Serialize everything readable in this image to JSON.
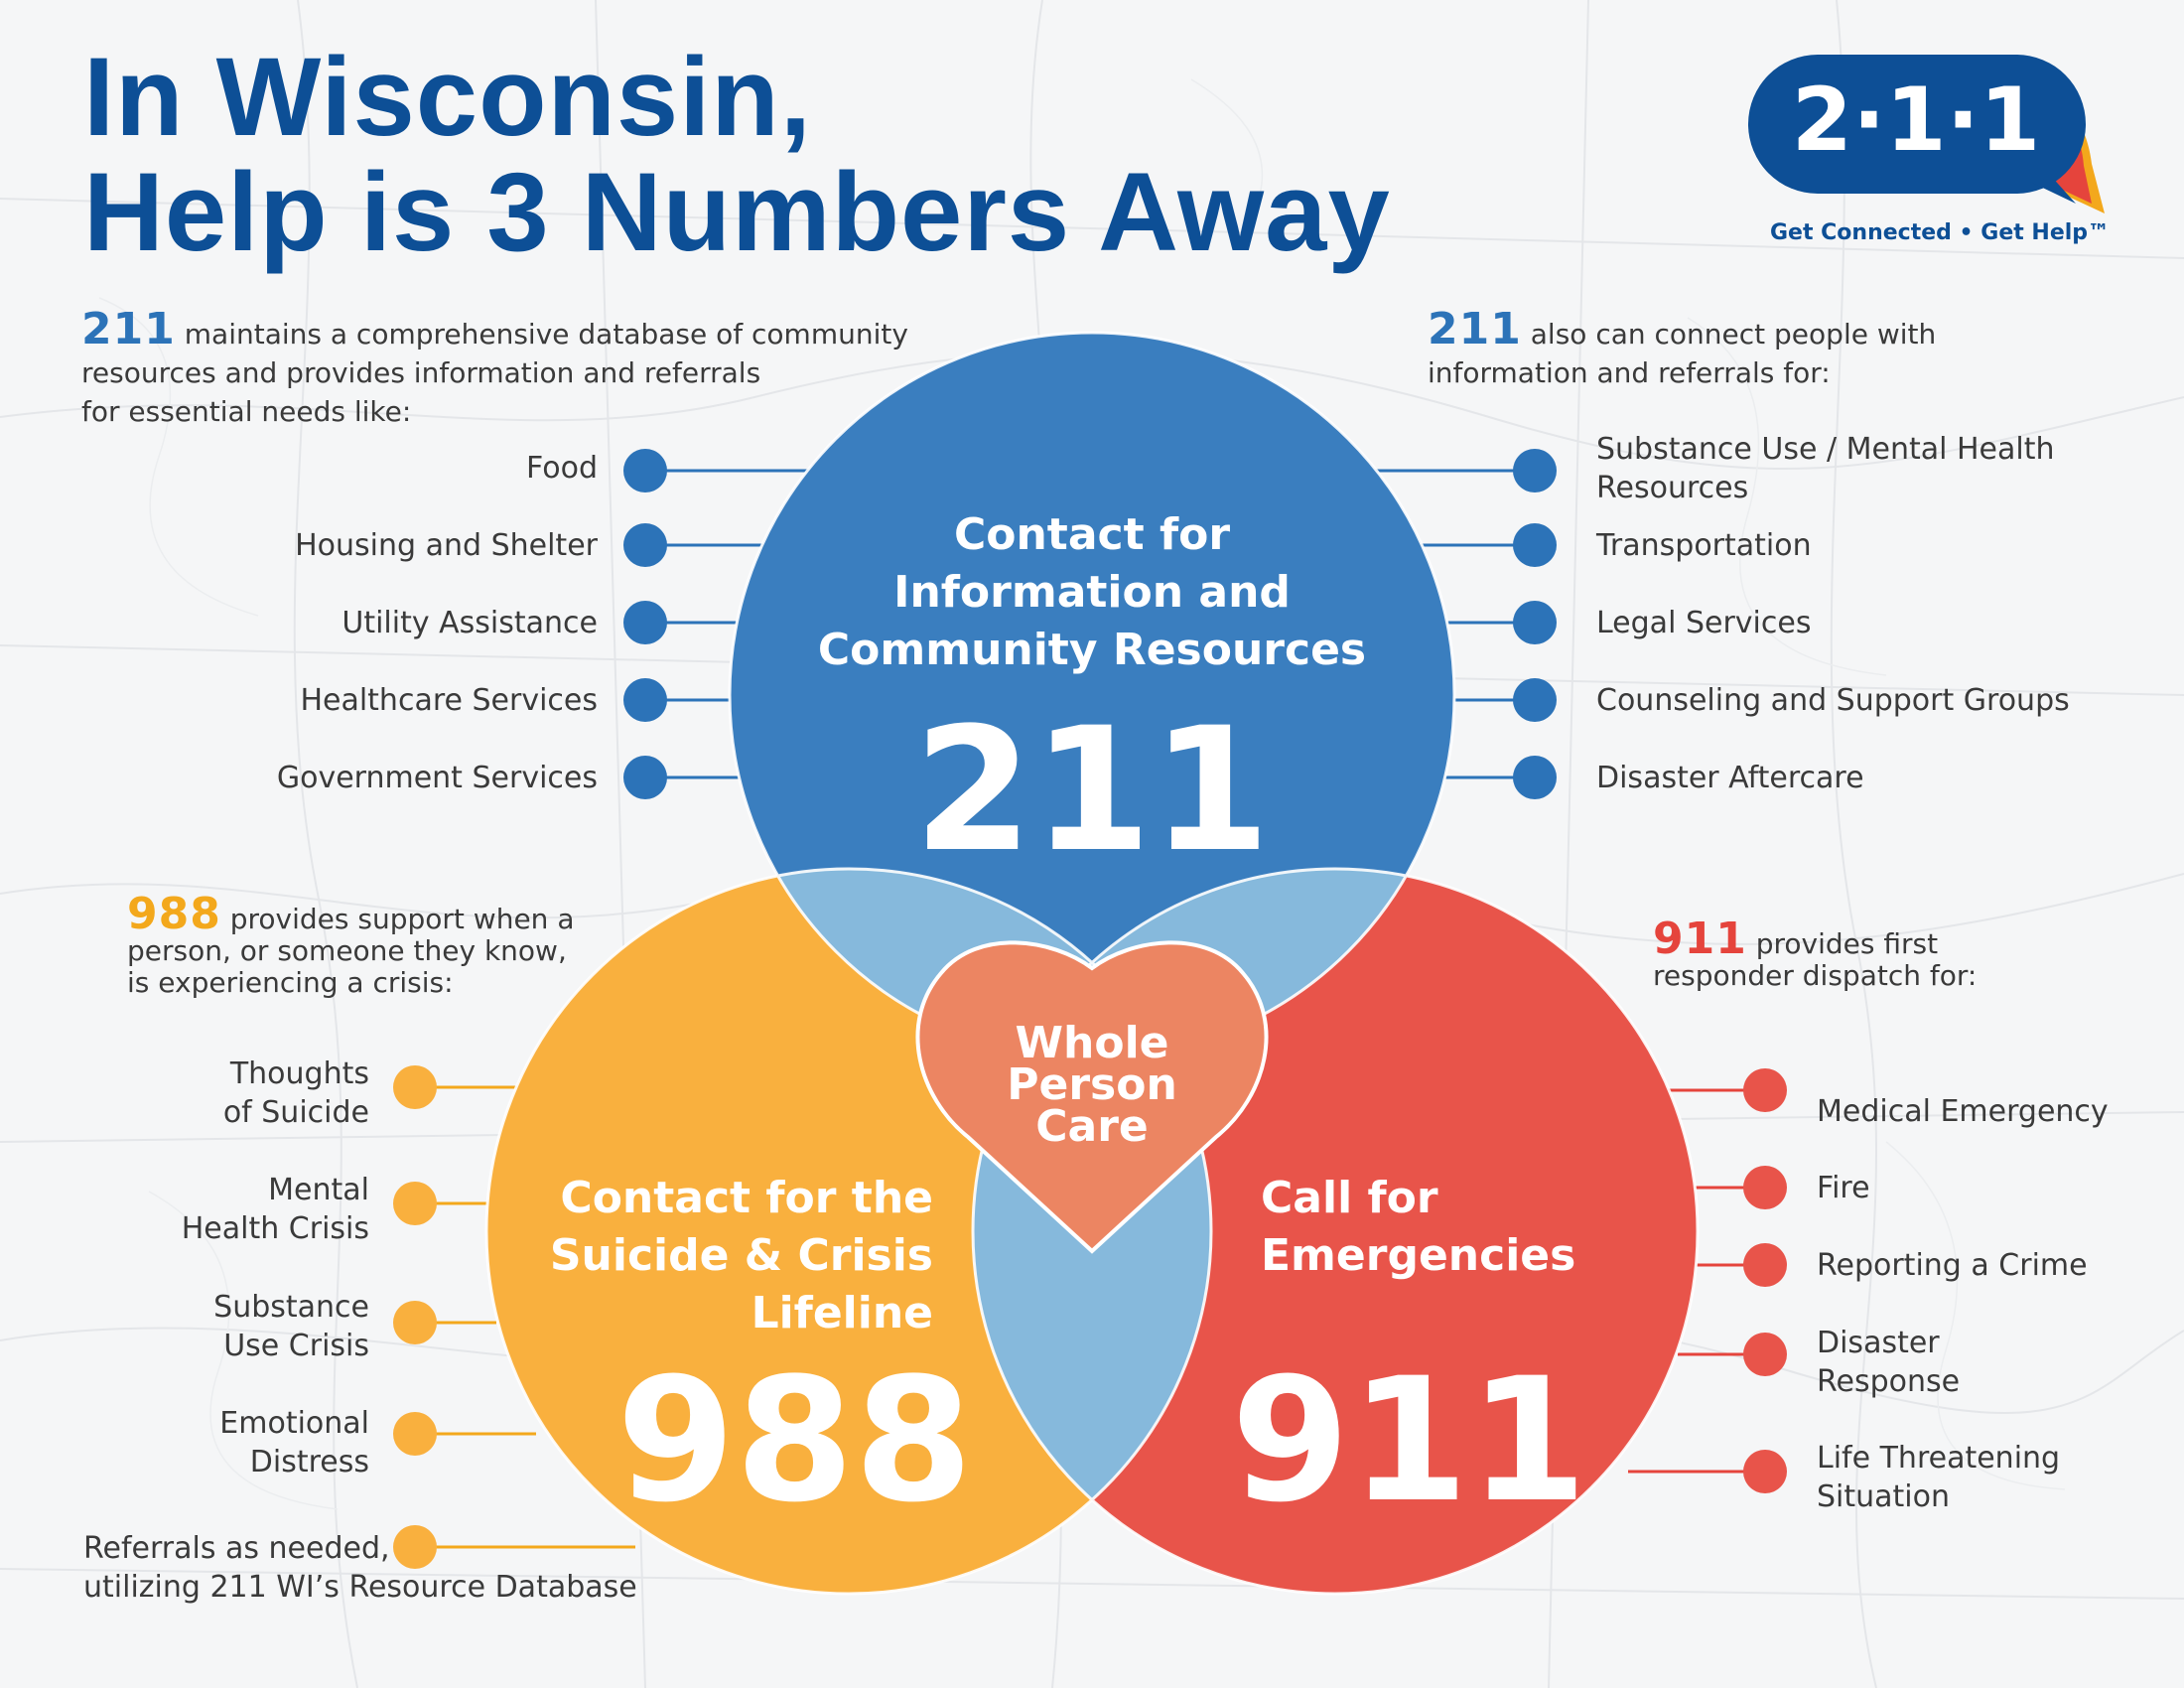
{
  "title": {
    "line1": "In Wisconsin,",
    "line2": "Help is 3 Numbers Away"
  },
  "logo": {
    "text": "2·1·1",
    "tagline": "Get Connected • Get Help™"
  },
  "colors": {
    "blue": "#2c73b8",
    "navy": "#0d4f96",
    "orange": "#f9b03e",
    "red": "#e8544a",
    "light_blue": "#86b9dc",
    "heart": "#ec8562"
  },
  "intro_211_left": {
    "number": "211",
    "line1_rest": " maintains a comprehensive database of community",
    "line2": "resources and provides information and referrals",
    "line3": "for essential needs like:"
  },
  "intro_211_right": {
    "number": "211",
    "line1_rest": " also can connect people with",
    "line2": "information and referrals for:"
  },
  "intro_988": {
    "number": "988",
    "line1_rest": " provides support when a",
    "line2": "person, or someone they know,",
    "line3": "is experiencing a crisis:"
  },
  "intro_911": {
    "number": "911",
    "line1_rest": " provides first",
    "line2": "responder dispatch for:"
  },
  "circle_211": {
    "label_lines": [
      "Contact for",
      "Information and",
      "Community Resources"
    ],
    "number": "211"
  },
  "circle_988": {
    "label_lines": [
      "Contact for the",
      "Suicide & Crisis",
      "Lifeline"
    ],
    "number": "988"
  },
  "circle_911": {
    "label_lines": [
      "Call for",
      "Emergencies"
    ],
    "number": "911"
  },
  "heart": {
    "label_lines": [
      "Whole",
      "Person",
      "Care"
    ]
  },
  "list_211_left": [
    "Food",
    "Housing and Shelter",
    "Utility Assistance",
    "Healthcare Services",
    "Government Services"
  ],
  "list_211_right": [
    [
      "Substance Use / Mental Health",
      "Resources"
    ],
    [
      "Transportation"
    ],
    [
      "Legal Services"
    ],
    [
      "Counseling and Support Groups"
    ],
    [
      "Disaster Aftercare"
    ]
  ],
  "list_988": [
    [
      "Thoughts",
      "of Suicide"
    ],
    [
      "Mental",
      "Health Crisis"
    ],
    [
      "Substance",
      "Use Crisis"
    ],
    [
      "Emotional",
      "Distress"
    ],
    [
      "Referrals as needed,",
      "utilizing 211 WI’s Resource Database"
    ]
  ],
  "list_911": [
    [
      "Medical Emergency"
    ],
    [
      "Fire"
    ],
    [
      "Reporting a Crime"
    ],
    [
      "Disaster",
      "Response"
    ],
    [
      "Life Threatening",
      "Situation"
    ]
  ]
}
